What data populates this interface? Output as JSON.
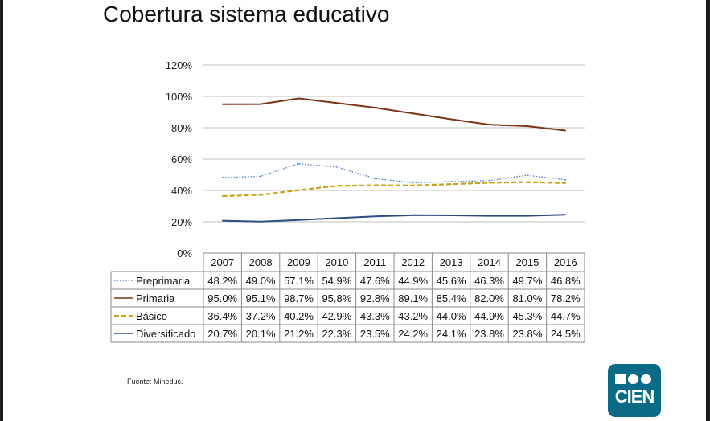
{
  "title": "Cobertura sistema educativo",
  "source": "Fuente: Mineduc.",
  "logo": {
    "text": "CIEN"
  },
  "colors": {
    "preprimaria": "#4a7bc4",
    "primaria": "#7b3416",
    "basico": "#c8a21a",
    "diversificado": "#2c4f85",
    "grid": "#bfbfbf",
    "logo": "#0b6b86"
  },
  "chart_data": {
    "type": "line",
    "title": "Cobertura sistema educativo",
    "categories": [
      "2007",
      "2008",
      "2009",
      "2010",
      "2011",
      "2012",
      "2013",
      "2014",
      "2015",
      "2016"
    ],
    "ylim": [
      0,
      120
    ],
    "yticks": [
      "0%",
      "20%",
      "40%",
      "60%",
      "80%",
      "100%",
      "120%"
    ],
    "grid": true,
    "series": [
      {
        "name": "Preprimaria",
        "style": "dotted",
        "values": [
          48.2,
          49.0,
          57.1,
          54.9,
          47.6,
          44.9,
          45.6,
          46.3,
          49.7,
          46.8
        ],
        "labels": [
          "48.2%",
          "49.0%",
          "57.1%",
          "54.9%",
          "47.6%",
          "44.9%",
          "45.6%",
          "46.3%",
          "49.7%",
          "46.8%"
        ]
      },
      {
        "name": "Primaria",
        "style": "solid",
        "values": [
          95.0,
          95.1,
          98.7,
          95.8,
          92.8,
          89.1,
          85.4,
          82.0,
          81.0,
          78.2
        ],
        "labels": [
          "95.0%",
          "95.1%",
          "98.7%",
          "95.8%",
          "92.8%",
          "89.1%",
          "85.4%",
          "82.0%",
          "81.0%",
          "78.2%"
        ]
      },
      {
        "name": "Básico",
        "style": "dashed",
        "values": [
          36.4,
          37.2,
          40.2,
          42.9,
          43.3,
          43.2,
          44.0,
          44.9,
          45.3,
          44.7
        ],
        "labels": [
          "36.4%",
          "37.2%",
          "40.2%",
          "42.9%",
          "43.3%",
          "43.2%",
          "44.0%",
          "44.9%",
          "45.3%",
          "44.7%"
        ]
      },
      {
        "name": "Diversificado",
        "style": "solid",
        "values": [
          20.7,
          20.1,
          21.2,
          22.3,
          23.5,
          24.2,
          24.1,
          23.8,
          23.8,
          24.5
        ],
        "labels": [
          "20.7%",
          "20.1%",
          "21.2%",
          "22.3%",
          "23.5%",
          "24.2%",
          "24.1%",
          "23.8%",
          "23.8%",
          "24.5%"
        ]
      }
    ]
  }
}
